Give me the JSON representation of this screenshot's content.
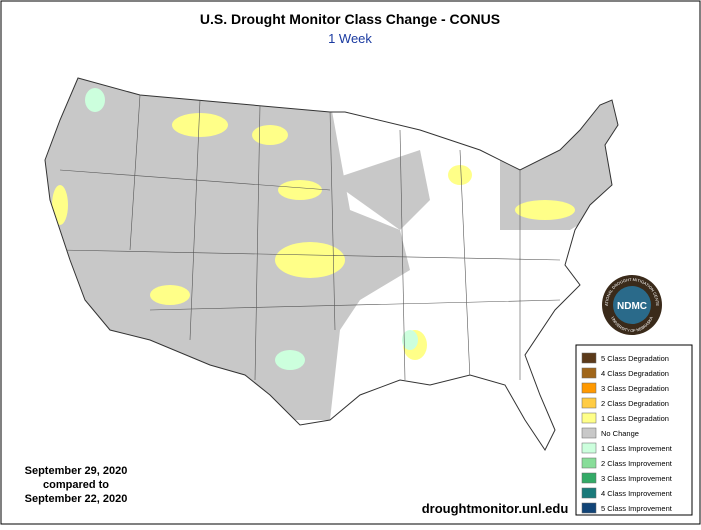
{
  "title": "U.S. Drought Monitor Class Change - CONUS",
  "subtitle": "1 Week",
  "date": {
    "current": "September 29, 2020",
    "compared": "compared to",
    "previous": "September 22, 2020"
  },
  "url": "droughtmonitor.unl.edu",
  "logo": {
    "label": "NDMC",
    "ring_top": "NATIONAL DROUGHT MITIGATION CENTER",
    "ring_bottom": "UNIVERSITY OF NEBRASKA"
  },
  "legend": [
    {
      "label": "5 Class Degradation",
      "color": "#5b3a1a"
    },
    {
      "label": "4 Class Degradation",
      "color": "#a0661a"
    },
    {
      "label": "3 Class Degradation",
      "color": "#ff9900"
    },
    {
      "label": "2 Class Degradation",
      "color": "#ffcc44"
    },
    {
      "label": "1 Class Degradation",
      "color": "#ffff88"
    },
    {
      "label": "No Change",
      "color": "#c8c8c8"
    },
    {
      "label": "1 Class Improvement",
      "color": "#ccffdd"
    },
    {
      "label": "2 Class Improvement",
      "color": "#88dd99"
    },
    {
      "label": "3 Class Improvement",
      "color": "#33aa66"
    },
    {
      "label": "4 Class Improvement",
      "color": "#1a7a7a"
    },
    {
      "label": "5 Class Improvement",
      "color": "#114477"
    }
  ]
}
